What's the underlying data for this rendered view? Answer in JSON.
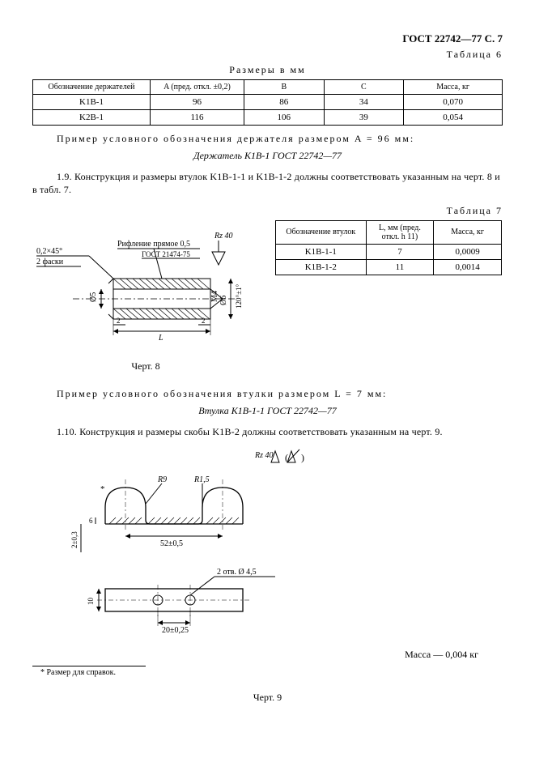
{
  "header": {
    "gost": "ГОСТ 22742—77 С. 7"
  },
  "table6": {
    "label": "Таблица 6",
    "caption": "Размеры в мм",
    "columns": [
      "Обозначение держателей",
      "A (пред. откл. ±0,2)",
      "B",
      "C",
      "Масса, кг"
    ],
    "rows": [
      [
        "K1B-1",
        "96",
        "86",
        "34",
        "0,070"
      ],
      [
        "K2B-1",
        "116",
        "106",
        "39",
        "0,054"
      ]
    ],
    "col_widths": [
      "25%",
      "20%",
      "17%",
      "17%",
      "21%"
    ]
  },
  "example1": {
    "lead": "Пример условного обозначения держателя размером A = 96 мм:",
    "text": "Держатель K1B-1 ГОСТ 22742—77"
  },
  "p19": "1.9. Конструкция и размеры втулок K1B-1-1 и K1B-1-2 должны соответствовать указанным на черт. 8 и в табл. 7.",
  "table7": {
    "label": "Таблица 7",
    "columns": [
      "Обозначение втулок",
      "L, мм (пред. откл. h 11)",
      "Масса, кг"
    ],
    "rows": [
      [
        "K1B-1-1",
        "7",
        "0,0009"
      ],
      [
        "K1B-1-2",
        "11",
        "0,0014"
      ]
    ],
    "col_widths": [
      "40%",
      "30%",
      "30%"
    ]
  },
  "fig8": {
    "caption": "Черт. 8",
    "labels": {
      "rz": "Rz 40",
      "chamfer": "0,2×45°",
      "faski": "2 фаски",
      "knurl": "Рифление прямое 0,5",
      "gostref": "ГОСТ 21474-75",
      "d5": "Ø5",
      "m4": "M4",
      "d6": "Ø6",
      "ang": "120°±1°",
      "t2a": "2",
      "t2b": "2",
      "L": "L"
    }
  },
  "example2": {
    "lead": "Пример условного обозначения втулки размером L = 7 мм:",
    "text": "Втулка K1B-1-1 ГОСТ 22742—77"
  },
  "p110": "1.10. Конструкция и размеры скобы K1B-2 должны соответствовать указанным на черт. 9.",
  "fig9": {
    "caption": "Черт. 9",
    "labels": {
      "rz": "Rz 40",
      "r9": "R9",
      "r15": "R1,5",
      "h6": "6",
      "h2": "2±0,3",
      "w52": "52±0,5",
      "holes": "2 отв. Ø 4,5",
      "w20": "20±0,25",
      "w10": "10",
      "star": "*"
    },
    "mass": "Масса — 0,004 кг"
  },
  "footnote": "* Размер для справок."
}
